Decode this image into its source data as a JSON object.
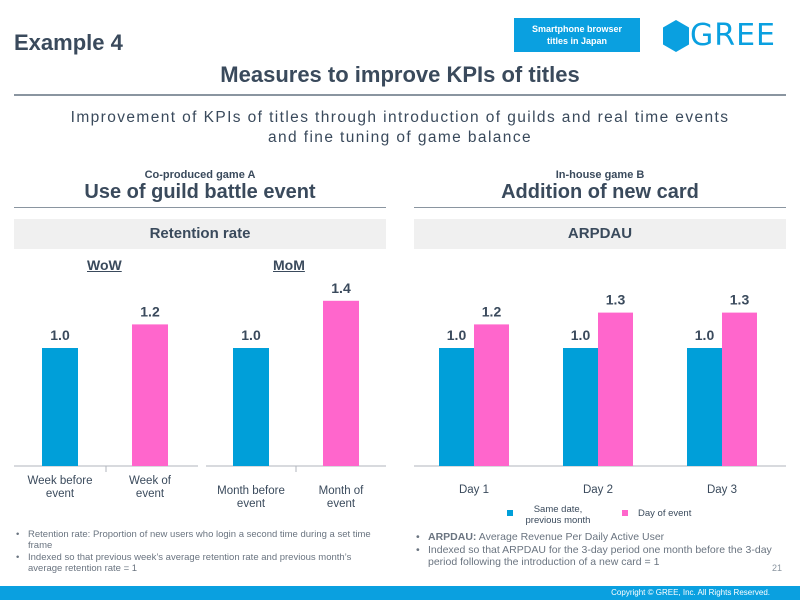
{
  "header": {
    "example": "Example 4",
    "badge_line1": "Smartphone browser",
    "badge_line2": "titles in Japan",
    "logo_text": "GREE",
    "title": "Measures to improve KPIs of titles",
    "subtitle_line1": "Improvement of KPIs of titles through introduction of guilds and real time events",
    "subtitle_line2": "and fine tuning of game balance"
  },
  "left": {
    "small": "Co-produced game A",
    "big": "Use of guild battle event",
    "band": "Retention rate",
    "wow_label": "WoW",
    "mom_label": "MoM",
    "notes": [
      "Retention rate: Proportion of new users who login a second time during a set time frame",
      "Indexed so that previous week’s average retention rate and  previous month’s average retention rate = 1"
    ]
  },
  "right": {
    "small": "In-house game B",
    "big": "Addition of new card",
    "band": "ARPDAU",
    "legend_blue_line1": "Same date,",
    "legend_blue_line2": "previous month",
    "legend_pink": "Day of  event",
    "notes_bold": "ARPDAU:",
    "notes_first": " Average Revenue Per Daily Active User",
    "notes_second": "Indexed so that ARPDAU for the 3-day period one month before the 3-day period following the introduction of a new card = 1"
  },
  "colors": {
    "blue": "#009fd9",
    "pink": "#ff66cc",
    "accent": "#0aa0e0",
    "text": "#3a4a5c"
  },
  "chart_data": [
    {
      "type": "bar",
      "title": "WoW",
      "categories": [
        "Week before event",
        "Week of event"
      ],
      "category_lines": [
        [
          "Week before",
          "event"
        ],
        [
          "Week of",
          "event"
        ]
      ],
      "values": [
        1.0,
        1.2
      ],
      "labels": [
        "1.0",
        "1.2"
      ],
      "colors": [
        "#009fd9",
        "#ff66cc"
      ],
      "ylim": [
        0,
        1.45
      ]
    },
    {
      "type": "bar",
      "title": "MoM",
      "categories": [
        "Month before event",
        "Month of event"
      ],
      "category_lines": [
        [
          "Month before",
          "event"
        ],
        [
          "Month of",
          "event"
        ]
      ],
      "values": [
        1.0,
        1.4
      ],
      "labels": [
        "1.0",
        "1.4"
      ],
      "colors": [
        "#009fd9",
        "#ff66cc"
      ],
      "ylim": [
        0,
        1.45
      ]
    },
    {
      "type": "bar",
      "title": "ARPDAU",
      "categories": [
        "Day 1",
        "Day 2",
        "Day 3"
      ],
      "series": [
        {
          "name": "Same date, previous month",
          "values": [
            1.0,
            1.0,
            1.0
          ],
          "labels": [
            "1.0",
            "1.0",
            "1.0"
          ],
          "color": "#009fd9"
        },
        {
          "name": "Day of event",
          "values": [
            1.2,
            1.3,
            1.3
          ],
          "labels": [
            "1.2",
            "1.3",
            "1.3"
          ],
          "color": "#ff66cc"
        }
      ],
      "ylim": [
        0,
        1.45
      ]
    }
  ],
  "footer": {
    "page": "21",
    "copyright": "Copyright © GREE, Inc. All Rights Reserved."
  }
}
